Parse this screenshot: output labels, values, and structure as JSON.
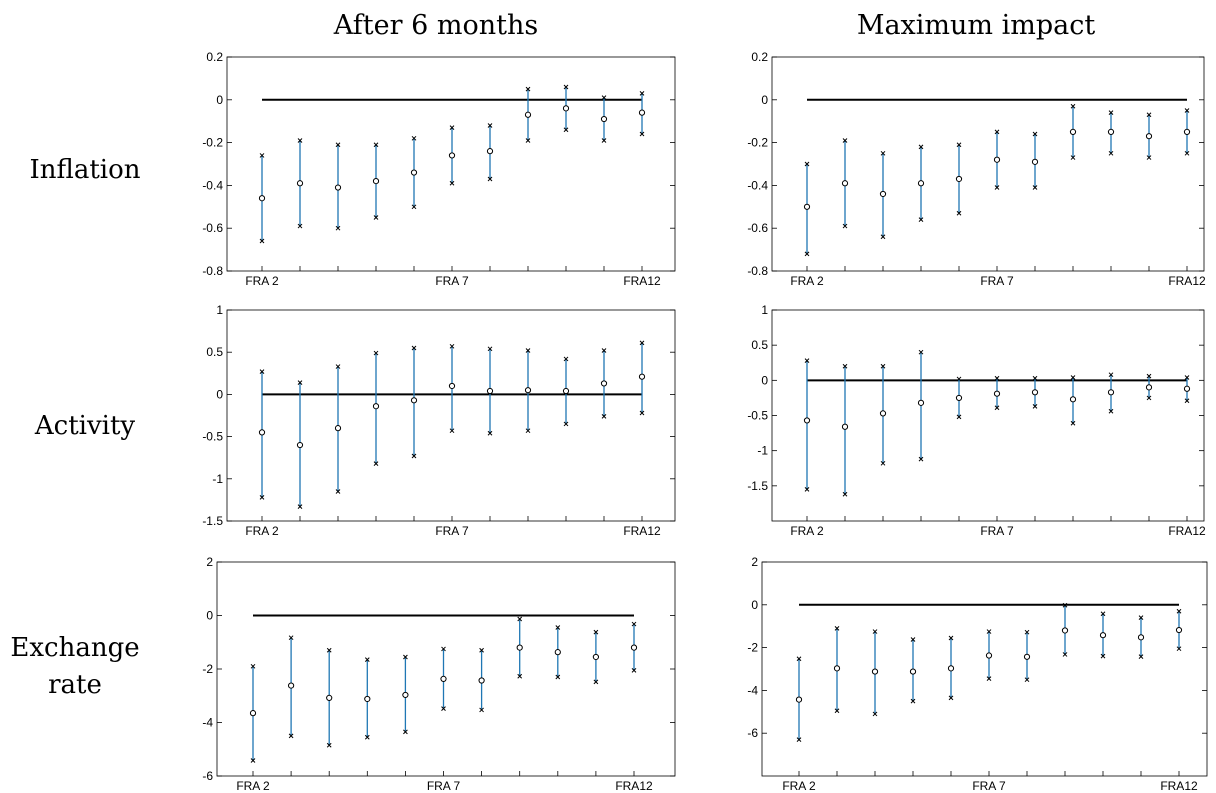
{
  "column_titles": [
    "After 6 months",
    "Maximum impact"
  ],
  "row_titles": [
    "Inflation",
    "Activity",
    "Exchange rate"
  ],
  "colors": {
    "interval": "#1f77b4",
    "zero_line": "#000000",
    "marker": "#000000"
  },
  "chart_data": [
    {
      "type": "scatter",
      "panel": "inflation-after-6-months",
      "x": [
        1,
        2,
        3,
        4,
        5,
        6,
        7,
        8,
        9,
        10,
        11
      ],
      "xtick_values": [
        1,
        6,
        11
      ],
      "xtick_labels": [
        "FRA 2",
        "FRA 7",
        "FRA12"
      ],
      "ylim": [
        -0.8,
        0.2
      ],
      "yticks": [
        -0.8,
        -0.6,
        -0.4,
        -0.2,
        0,
        0.2
      ],
      "ytick_labels": [
        "-0.8",
        "-0.6",
        "-0.4",
        "-0.2",
        "0",
        "0.2"
      ],
      "estimate": [
        -0.46,
        -0.39,
        -0.41,
        -0.38,
        -0.34,
        -0.26,
        -0.24,
        -0.07,
        -0.04,
        -0.09,
        -0.06
      ],
      "lower": [
        -0.66,
        -0.59,
        -0.6,
        -0.55,
        -0.5,
        -0.39,
        -0.37,
        -0.19,
        -0.14,
        -0.19,
        -0.16
      ],
      "upper": [
        -0.26,
        -0.19,
        -0.21,
        -0.21,
        -0.18,
        -0.13,
        -0.12,
        0.05,
        0.06,
        0.01,
        0.03
      ],
      "zero_line": [
        1,
        11
      ],
      "grid": false
    },
    {
      "type": "scatter",
      "panel": "inflation-maximum-impact",
      "x": [
        1,
        2,
        3,
        4,
        5,
        6,
        7,
        8,
        9,
        10,
        11
      ],
      "xtick_values": [
        1,
        6,
        11
      ],
      "xtick_labels": [
        "FRA 2",
        "FRA 7",
        "FRA12"
      ],
      "ylim": [
        -0.8,
        0.2
      ],
      "yticks": [
        -0.8,
        -0.6,
        -0.4,
        -0.2,
        0,
        0.2
      ],
      "ytick_labels": [
        "-0.8",
        "-0.6",
        "-0.4",
        "-0.2",
        "0",
        "0.2"
      ],
      "estimate": [
        -0.5,
        -0.39,
        -0.44,
        -0.39,
        -0.37,
        -0.28,
        -0.29,
        -0.15,
        -0.15,
        -0.17,
        -0.15
      ],
      "lower": [
        -0.72,
        -0.59,
        -0.64,
        -0.56,
        -0.53,
        -0.41,
        -0.41,
        -0.27,
        -0.25,
        -0.27,
        -0.25
      ],
      "upper": [
        -0.3,
        -0.19,
        -0.25,
        -0.22,
        -0.21,
        -0.15,
        -0.16,
        -0.03,
        -0.06,
        -0.07,
        -0.05
      ],
      "zero_line": [
        1,
        11
      ],
      "grid": false
    },
    {
      "type": "scatter",
      "panel": "activity-after-6-months",
      "x": [
        1,
        2,
        3,
        4,
        5,
        6,
        7,
        8,
        9,
        10,
        11
      ],
      "xtick_values": [
        1,
        6,
        11
      ],
      "xtick_labels": [
        "FRA 2",
        "FRA 7",
        "FRA12"
      ],
      "ylim": [
        -1.5,
        1
      ],
      "yticks": [
        -1.5,
        -1,
        -0.5,
        0,
        0.5,
        1
      ],
      "ytick_labels": [
        "-1.5",
        "-1",
        "-0.5",
        "0",
        "0.5",
        "1"
      ],
      "estimate": [
        -0.45,
        -0.6,
        -0.4,
        -0.14,
        -0.07,
        0.1,
        0.04,
        0.05,
        0.04,
        0.13,
        0.21
      ],
      "lower": [
        -1.22,
        -1.33,
        -1.15,
        -0.82,
        -0.73,
        -0.43,
        -0.46,
        -0.43,
        -0.35,
        -0.26,
        -0.22
      ],
      "upper": [
        0.27,
        0.14,
        0.33,
        0.49,
        0.55,
        0.57,
        0.54,
        0.52,
        0.42,
        0.52,
        0.61
      ],
      "zero_line": [
        1,
        11
      ],
      "grid": false
    },
    {
      "type": "scatter",
      "panel": "activity-maximum-impact",
      "x": [
        1,
        2,
        3,
        4,
        5,
        6,
        7,
        8,
        9,
        10,
        11
      ],
      "xtick_values": [
        1,
        6,
        11
      ],
      "xtick_labels": [
        "FRA 2",
        "FRA 7",
        "FRA12"
      ],
      "ylim": [
        -2,
        1
      ],
      "yticks": [
        -1.5,
        -1,
        -0.5,
        0,
        0.5,
        1
      ],
      "ytick_labels": [
        "-1.5",
        "-1",
        "-0.5",
        "0",
        "0.5",
        "1"
      ],
      "estimate": [
        -0.57,
        -0.66,
        -0.47,
        -0.32,
        -0.25,
        -0.19,
        -0.17,
        -0.27,
        -0.17,
        -0.1,
        -0.12
      ],
      "lower": [
        -1.55,
        -1.62,
        -1.18,
        -1.12,
        -0.52,
        -0.39,
        -0.37,
        -0.61,
        -0.44,
        -0.25,
        -0.29
      ],
      "upper": [
        0.28,
        0.2,
        0.2,
        0.4,
        0.02,
        0.03,
        0.03,
        0.04,
        0.08,
        0.06,
        0.04
      ],
      "zero_line": [
        1,
        11
      ],
      "grid": false
    },
    {
      "type": "scatter",
      "panel": "exchange-rate-after-6-months",
      "x": [
        1,
        2,
        3,
        4,
        5,
        6,
        7,
        8,
        9,
        10,
        11
      ],
      "xtick_values": [
        1,
        6,
        11
      ],
      "xtick_labels": [
        "FRA 2",
        "FRA 7",
        "FRA12"
      ],
      "ylim": [
        -6,
        2
      ],
      "yticks": [
        -6,
        -4,
        -2,
        0,
        2
      ],
      "ytick_labels": [
        "-6",
        "-4",
        "-2",
        "0",
        "2"
      ],
      "estimate": [
        -3.65,
        -2.62,
        -3.08,
        -3.12,
        -2.97,
        -2.37,
        -2.43,
        -1.2,
        -1.37,
        -1.55,
        -1.2
      ],
      "lower": [
        -5.42,
        -4.5,
        -4.85,
        -4.55,
        -4.35,
        -3.48,
        -3.53,
        -2.27,
        -2.3,
        -2.48,
        -2.05
      ],
      "upper": [
        -1.9,
        -0.83,
        -1.3,
        -1.65,
        -1.55,
        -1.25,
        -1.3,
        -0.13,
        -0.45,
        -0.62,
        -0.32
      ],
      "zero_line": [
        1,
        11
      ],
      "grid": false
    },
    {
      "type": "scatter",
      "panel": "exchange-rate-maximum-impact",
      "x": [
        1,
        2,
        3,
        4,
        5,
        6,
        7,
        8,
        9,
        10,
        11
      ],
      "xtick_values": [
        1,
        6,
        11
      ],
      "xtick_labels": [
        "FRA 2",
        "FRA 7",
        "FRA12"
      ],
      "ylim": [
        -8,
        2
      ],
      "yticks": [
        -6,
        -4,
        -2,
        0,
        2
      ],
      "ytick_labels": [
        "-6",
        "-4",
        "-2",
        "0",
        "2"
      ],
      "estimate": [
        -4.43,
        -2.97,
        -3.12,
        -3.12,
        -2.97,
        -2.37,
        -2.43,
        -1.2,
        -1.42,
        -1.52,
        -1.18
      ],
      "lower": [
        -6.3,
        -4.95,
        -5.1,
        -4.5,
        -4.35,
        -3.45,
        -3.5,
        -2.32,
        -2.4,
        -2.42,
        -2.05
      ],
      "upper": [
        -2.52,
        -1.1,
        -1.25,
        -1.62,
        -1.55,
        -1.25,
        -1.28,
        -0.02,
        -0.42,
        -0.6,
        -0.3
      ],
      "zero_line": [
        1,
        11
      ],
      "grid": false
    }
  ]
}
